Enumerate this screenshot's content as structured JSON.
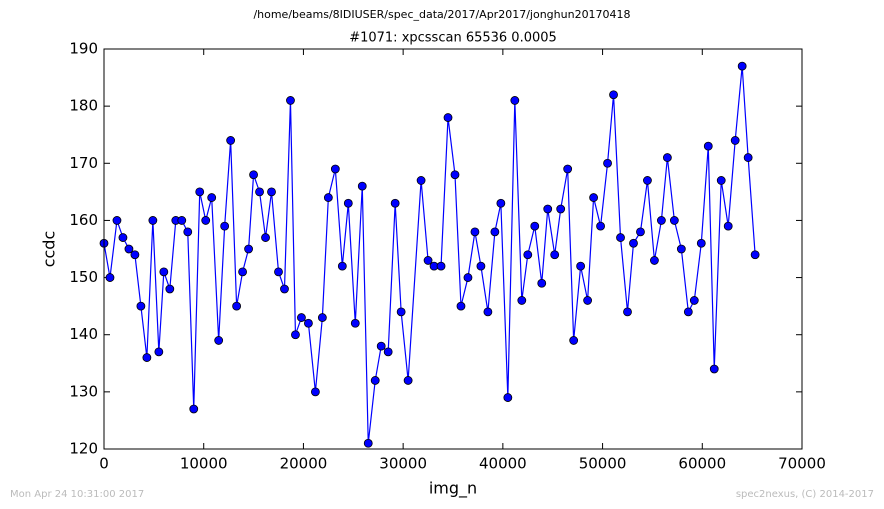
{
  "chart_data": {
    "type": "line",
    "suptitle": "/home/beams/8IDIUSER/spec_data/2017/Apr2017/jonghun20170418",
    "title": "#1071: xpcsscan 65536 0.0005",
    "x_label": "img_n",
    "y_label": "ccdc",
    "footer_left": "Mon Apr 24 10:31:00 2017",
    "footer_right": "spec2nexus, (C) 2014-2017",
    "xlim": [
      0,
      70000
    ],
    "xticks": [
      0,
      10000,
      20000,
      30000,
      40000,
      50000,
      60000,
      70000
    ],
    "ylim": [
      120,
      190
    ],
    "yticks": [
      120,
      130,
      140,
      150,
      160,
      170,
      180,
      190
    ],
    "x": [
      0,
      600,
      1300,
      1900,
      2500,
      3100,
      3700,
      4300,
      4900,
      5500,
      6000,
      6600,
      7200,
      7800,
      8400,
      9000,
      9600,
      10200,
      10800,
      11500,
      12100,
      12700,
      13300,
      13900,
      14500,
      15000,
      15600,
      16200,
      16800,
      17500,
      18100,
      18700,
      19200,
      19800,
      20500,
      21200,
      21900,
      22500,
      23200,
      23900,
      24500,
      25200,
      25900,
      26500,
      27200,
      27800,
      28500,
      29200,
      29800,
      30500,
      31800,
      32500,
      33100,
      33800,
      34500,
      35200,
      35800,
      36500,
      37200,
      37800,
      38500,
      39200,
      39800,
      40500,
      41200,
      41900,
      42500,
      43200,
      43900,
      44500,
      45200,
      45800,
      46500,
      47100,
      47800,
      48500,
      49100,
      49800,
      50500,
      51100,
      51800,
      52500,
      53100,
      53800,
      54500,
      55200,
      55900,
      56500,
      57200,
      57900,
      58600,
      59200,
      59900,
      60600,
      61200,
      61900,
      62600,
      63300,
      64000,
      64600,
      65300
    ],
    "series": [
      {
        "color": "#0000ff",
        "values": [
          156,
          150,
          160,
          157,
          155,
          154,
          145,
          136,
          160,
          137,
          151,
          148,
          160,
          160,
          158,
          127,
          165,
          160,
          164,
          139,
          159,
          174,
          145,
          151,
          155,
          168,
          165,
          157,
          165,
          151,
          148,
          181,
          140,
          143,
          142,
          130,
          143,
          164,
          169,
          152,
          163,
          142,
          166,
          121,
          132,
          138,
          137,
          163,
          144,
          132,
          167,
          153,
          152,
          152,
          178,
          168,
          145,
          150,
          158,
          152,
          144,
          158,
          163,
          129,
          181,
          146,
          154,
          159,
          149,
          162,
          154,
          162,
          169,
          139,
          152,
          146,
          164,
          159,
          170,
          182,
          157,
          144,
          156,
          158,
          167,
          153,
          160,
          171,
          160,
          155,
          144,
          146,
          156,
          173,
          134,
          167,
          159,
          174,
          187,
          171,
          154
        ]
      }
    ]
  }
}
